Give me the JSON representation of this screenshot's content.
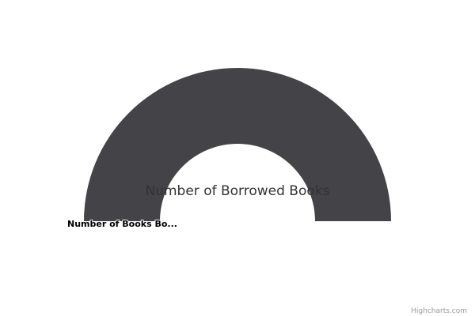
{
  "chart_data": {
    "type": "pie",
    "variant": "semi-circle-donut",
    "title": "Number of Borrowed Books",
    "series": [
      {
        "name": "",
        "slices": [
          {
            "label": "Number of Books Bo...",
            "value": 1,
            "color": "#434348"
          }
        ]
      }
    ],
    "legend": "none"
  },
  "credits": {
    "text": "Highcharts.com"
  }
}
